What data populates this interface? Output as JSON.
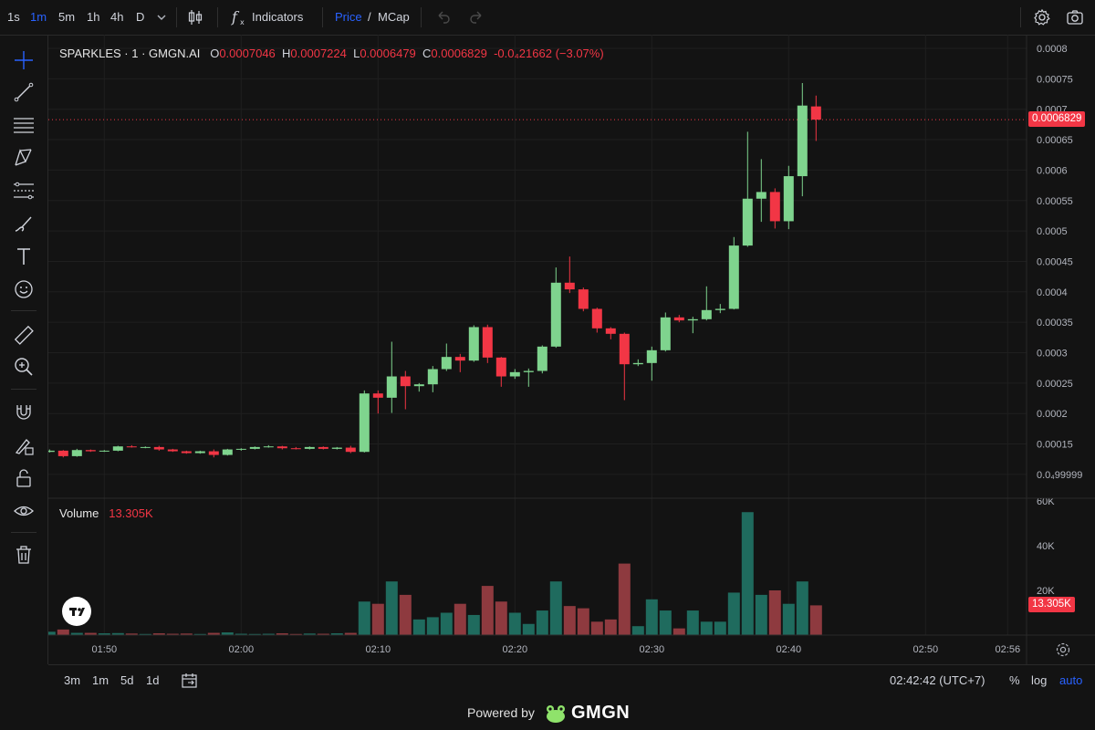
{
  "toolbar": {
    "intervals": [
      "1s",
      "1m",
      "5m",
      "1h",
      "4h",
      "D"
    ],
    "active_interval": "1m",
    "indicators_label": "Indicators",
    "price_label": "Price",
    "price_separator": "/",
    "mcap_label": "MCap"
  },
  "legend": {
    "title": "SPARKLES · 1 · GMGN.AI",
    "o_key": "O",
    "o_val": "0.0007046",
    "h_key": "H",
    "h_val": "0.0007224",
    "l_key": "L",
    "l_val": "0.0006479",
    "c_key": "C",
    "c_val": "0.0006829",
    "change": "-0.0₄21662 (−3.07%)",
    "volume_label": "Volume",
    "volume_value": "13.305K"
  },
  "price_badge": "0.0006829",
  "volume_badge": "13.305K",
  "colors": {
    "up": "#7fd48e",
    "down": "#f23645",
    "volume_up": "#1f6b5e",
    "volume_down": "#8e3a3f",
    "background": "#131313",
    "accent": "#2962ff"
  },
  "bottom": {
    "ranges": [
      "3m",
      "1m",
      "5d",
      "1d"
    ],
    "time": "02:42:42 (UTC+7)",
    "percent_label": "%",
    "log_label": "log",
    "auto_label": "auto"
  },
  "footer": {
    "powered": "Powered by",
    "brand": "GMGN"
  },
  "chart_data": {
    "type": "candlestick",
    "title": "SPARKLES · 1 · GMGN.AI",
    "price_axis_ticks": [
      "0.0008",
      "0.00075",
      "0.0007",
      "0.00065",
      "0.0006",
      "0.00055",
      "0.0005",
      "0.00045",
      "0.0004",
      "0.00035",
      "0.0003",
      "0.00025",
      "0.0002",
      "0.00015",
      "0.0₄99999"
    ],
    "price_axis_values": [
      0.0008,
      0.00075,
      0.0007,
      0.00065,
      0.0006,
      0.00055,
      0.0005,
      0.00045,
      0.0004,
      0.00035,
      0.0003,
      0.00025,
      0.0002,
      0.00015,
      0.0001
    ],
    "volume_axis_ticks": [
      "60K",
      "40K",
      "20K"
    ],
    "volume_axis_values": [
      60000,
      40000,
      20000
    ],
    "time_axis_ticks": [
      "01:50",
      "02:00",
      "02:10",
      "02:20",
      "02:30",
      "02:40",
      "02:50",
      "02:56"
    ],
    "time_axis_minutes": [
      110,
      120,
      130,
      140,
      150,
      160,
      170,
      176
    ],
    "ylim": [
      9.99e-05,
      0.0008
    ],
    "volume_ylim": [
      0,
      60000
    ],
    "last_price": 0.0006829,
    "grid": true,
    "candles": [
      {
        "t": 104,
        "o": 0.00015,
        "h": 0.000152,
        "l": 0.000146,
        "c": 0.000148,
        "v": 1000
      },
      {
        "t": 105,
        "o": 0.000148,
        "h": 0.000149,
        "l": 0.000133,
        "c": 0.000137,
        "v": 2000
      },
      {
        "t": 106,
        "o": 0.000137,
        "h": 0.000141,
        "l": 0.000136,
        "c": 0.000139,
        "v": 1500
      },
      {
        "t": 107,
        "o": 0.000139,
        "h": 0.00014,
        "l": 0.000128,
        "c": 0.00013,
        "v": 2500
      },
      {
        "t": 108,
        "o": 0.00013,
        "h": 0.000142,
        "l": 0.000129,
        "c": 0.00014,
        "v": 1000
      },
      {
        "t": 109,
        "o": 0.00014,
        "h": 0.000141,
        "l": 0.000137,
        "c": 0.000138,
        "v": 1000
      },
      {
        "t": 110,
        "o": 0.000138,
        "h": 0.00014,
        "l": 0.000137,
        "c": 0.000139,
        "v": 800
      },
      {
        "t": 111,
        "o": 0.000139,
        "h": 0.000147,
        "l": 0.000138,
        "c": 0.000146,
        "v": 900
      },
      {
        "t": 112,
        "o": 0.000146,
        "h": 0.000148,
        "l": 0.000144,
        "c": 0.000145,
        "v": 700
      },
      {
        "t": 113,
        "o": 0.000145,
        "h": 0.000146,
        "l": 0.000143,
        "c": 0.000145,
        "v": 500
      },
      {
        "t": 114,
        "o": 0.000145,
        "h": 0.000147,
        "l": 0.000139,
        "c": 0.000141,
        "v": 800
      },
      {
        "t": 115,
        "o": 0.000141,
        "h": 0.000142,
        "l": 0.000137,
        "c": 0.000138,
        "v": 600
      },
      {
        "t": 116,
        "o": 0.000138,
        "h": 0.000139,
        "l": 0.000134,
        "c": 0.000135,
        "v": 700
      },
      {
        "t": 117,
        "o": 0.000135,
        "h": 0.000139,
        "l": 0.000134,
        "c": 0.000138,
        "v": 500
      },
      {
        "t": 118,
        "o": 0.000138,
        "h": 0.000141,
        "l": 0.000128,
        "c": 0.000132,
        "v": 1000
      },
      {
        "t": 119,
        "o": 0.000132,
        "h": 0.000142,
        "l": 0.000131,
        "c": 0.000141,
        "v": 1200
      },
      {
        "t": 120,
        "o": 0.000141,
        "h": 0.000143,
        "l": 0.000139,
        "c": 0.000142,
        "v": 600
      },
      {
        "t": 121,
        "o": 0.000142,
        "h": 0.000146,
        "l": 0.000141,
        "c": 0.000145,
        "v": 500
      },
      {
        "t": 122,
        "o": 0.000145,
        "h": 0.000148,
        "l": 0.000144,
        "c": 0.000146,
        "v": 600
      },
      {
        "t": 123,
        "o": 0.000146,
        "h": 0.000147,
        "l": 0.000141,
        "c": 0.000143,
        "v": 800
      },
      {
        "t": 124,
        "o": 0.000143,
        "h": 0.000145,
        "l": 0.000141,
        "c": 0.000142,
        "v": 500
      },
      {
        "t": 125,
        "o": 0.000142,
        "h": 0.000146,
        "l": 0.000141,
        "c": 0.000145,
        "v": 700
      },
      {
        "t": 126,
        "o": 0.000145,
        "h": 0.000146,
        "l": 0.000141,
        "c": 0.000142,
        "v": 600
      },
      {
        "t": 127,
        "o": 0.000142,
        "h": 0.000145,
        "l": 0.000141,
        "c": 0.000144,
        "v": 800
      },
      {
        "t": 128,
        "o": 0.000144,
        "h": 0.000147,
        "l": 0.000135,
        "c": 0.000137,
        "v": 1000
      },
      {
        "t": 129,
        "o": 0.000137,
        "h": 0.000238,
        "l": 0.000136,
        "c": 0.000233,
        "v": 15000
      },
      {
        "t": 130,
        "o": 0.000233,
        "h": 0.000238,
        "l": 0.0002,
        "c": 0.000226,
        "v": 14000
      },
      {
        "t": 131,
        "o": 0.000226,
        "h": 0.000318,
        "l": 0.000201,
        "c": 0.000261,
        "v": 24000
      },
      {
        "t": 132,
        "o": 0.000261,
        "h": 0.00027,
        "l": 0.000207,
        "c": 0.000245,
        "v": 18000
      },
      {
        "t": 133,
        "o": 0.000245,
        "h": 0.00025,
        "l": 0.000236,
        "c": 0.000248,
        "v": 7000
      },
      {
        "t": 134,
        "o": 0.000248,
        "h": 0.000278,
        "l": 0.000235,
        "c": 0.000273,
        "v": 8000
      },
      {
        "t": 135,
        "o": 0.000273,
        "h": 0.000315,
        "l": 0.00027,
        "c": 0.000293,
        "v": 10000
      },
      {
        "t": 136,
        "o": 0.000293,
        "h": 0.000298,
        "l": 0.000268,
        "c": 0.000287,
        "v": 14000
      },
      {
        "t": 137,
        "o": 0.000287,
        "h": 0.000345,
        "l": 0.000285,
        "c": 0.000342,
        "v": 9000
      },
      {
        "t": 138,
        "o": 0.000342,
        "h": 0.000346,
        "l": 0.000283,
        "c": 0.000292,
        "v": 22000
      },
      {
        "t": 139,
        "o": 0.000292,
        "h": 0.000293,
        "l": 0.000244,
        "c": 0.000261,
        "v": 15000
      },
      {
        "t": 140,
        "o": 0.000261,
        "h": 0.000273,
        "l": 0.000257,
        "c": 0.000268,
        "v": 10000
      },
      {
        "t": 141,
        "o": 0.000268,
        "h": 0.000274,
        "l": 0.000244,
        "c": 0.00027,
        "v": 5000
      },
      {
        "t": 142,
        "o": 0.00027,
        "h": 0.000312,
        "l": 0.000266,
        "c": 0.00031,
        "v": 11000
      },
      {
        "t": 143,
        "o": 0.00031,
        "h": 0.00044,
        "l": 0.000308,
        "c": 0.000415,
        "v": 24000
      },
      {
        "t": 144,
        "o": 0.000415,
        "h": 0.000458,
        "l": 0.000398,
        "c": 0.000404,
        "v": 13000
      },
      {
        "t": 145,
        "o": 0.000404,
        "h": 0.000407,
        "l": 0.000368,
        "c": 0.000372,
        "v": 12000
      },
      {
        "t": 146,
        "o": 0.000372,
        "h": 0.000374,
        "l": 0.000333,
        "c": 0.00034,
        "v": 6000
      },
      {
        "t": 147,
        "o": 0.00034,
        "h": 0.000342,
        "l": 0.000322,
        "c": 0.000331,
        "v": 7000
      },
      {
        "t": 148,
        "o": 0.000331,
        "h": 0.000333,
        "l": 0.000222,
        "c": 0.000281,
        "v": 32000
      },
      {
        "t": 149,
        "o": 0.000281,
        "h": 0.000289,
        "l": 0.000278,
        "c": 0.000283,
        "v": 4000
      },
      {
        "t": 150,
        "o": 0.000283,
        "h": 0.00031,
        "l": 0.000254,
        "c": 0.000304,
        "v": 16000
      },
      {
        "t": 151,
        "o": 0.000304,
        "h": 0.000366,
        "l": 0.000302,
        "c": 0.000358,
        "v": 11000
      },
      {
        "t": 152,
        "o": 0.000358,
        "h": 0.000362,
        "l": 0.00035,
        "c": 0.000353,
        "v": 3000
      },
      {
        "t": 153,
        "o": 0.000353,
        "h": 0.000359,
        "l": 0.000332,
        "c": 0.000355,
        "v": 11000
      },
      {
        "t": 154,
        "o": 0.000355,
        "h": 0.000409,
        "l": 0.000353,
        "c": 0.00037,
        "v": 6000
      },
      {
        "t": 155,
        "o": 0.00037,
        "h": 0.00038,
        "l": 0.000365,
        "c": 0.000372,
        "v": 6000
      },
      {
        "t": 156,
        "o": 0.000372,
        "h": 0.00049,
        "l": 0.000371,
        "c": 0.000476,
        "v": 19000
      },
      {
        "t": 157,
        "o": 0.000476,
        "h": 0.000663,
        "l": 0.000474,
        "c": 0.000553,
        "v": 55000
      },
      {
        "t": 158,
        "o": 0.000553,
        "h": 0.000618,
        "l": 0.000515,
        "c": 0.000564,
        "v": 18000
      },
      {
        "t": 159,
        "o": 0.000564,
        "h": 0.00057,
        "l": 0.000504,
        "c": 0.000516,
        "v": 20000
      },
      {
        "t": 160,
        "o": 0.000516,
        "h": 0.000607,
        "l": 0.000503,
        "c": 0.00059,
        "v": 14000
      },
      {
        "t": 161,
        "o": 0.00059,
        "h": 0.000743,
        "l": 0.000557,
        "c": 0.000706,
        "v": 24000
      },
      {
        "t": 162,
        "o": 0.0007046,
        "h": 0.0007224,
        "l": 0.0006479,
        "c": 0.0006829,
        "v": 13305
      }
    ]
  }
}
